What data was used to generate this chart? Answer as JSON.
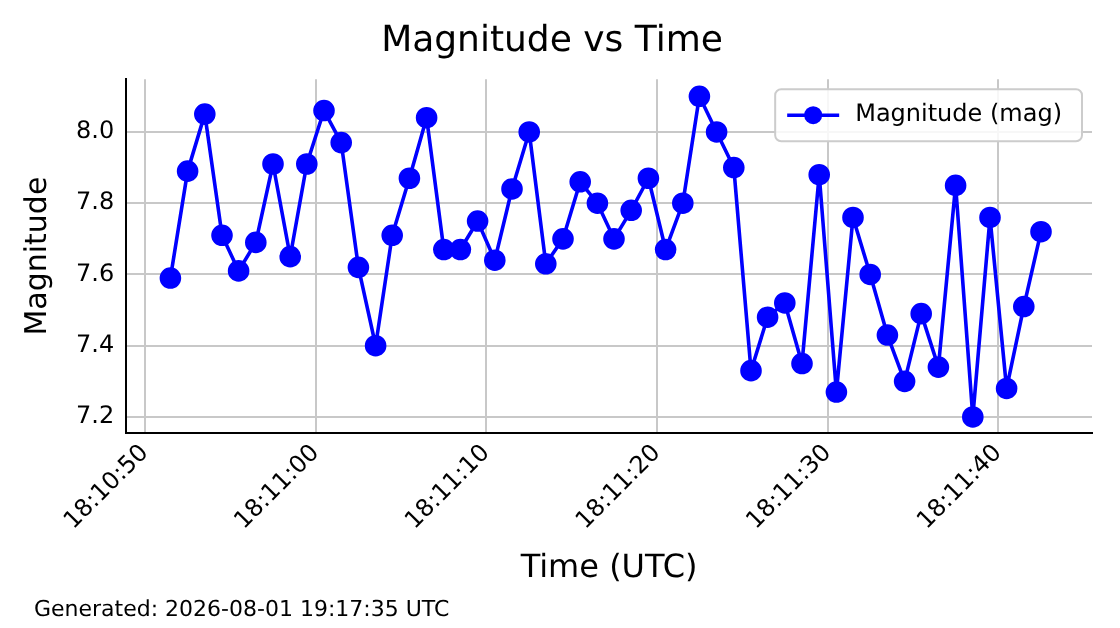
{
  "chart_data": {
    "type": "line",
    "title": "Magnitude vs Time",
    "xlabel": "Time (UTC)",
    "ylabel": "Magnitude",
    "annotations": [
      "Generated: 2026-08-01 19:17:35 UTC"
    ],
    "x": [
      18.18097,
      18.18125,
      18.18153,
      18.18181,
      18.18208,
      18.18236,
      18.18264,
      18.18292,
      18.18319,
      18.18347,
      18.18375,
      18.18403,
      18.18431,
      18.18458,
      18.18486,
      18.18514,
      18.18542,
      18.18569,
      18.18597,
      18.18625,
      18.18653,
      18.18681,
      18.18708,
      18.18736,
      18.18764,
      18.18792,
      18.18819,
      18.18847,
      18.18875,
      18.18903,
      18.18931,
      18.18958,
      18.18986,
      18.19014,
      18.19042,
      18.19069,
      18.19097,
      18.19125,
      18.19153,
      18.19181,
      18.19208,
      18.19236,
      18.19264,
      18.19292,
      18.19319,
      18.19347,
      18.19375,
      18.19403,
      18.19431,
      18.19458,
      18.19486,
      18.19514
    ],
    "series": [
      {
        "name": "Magnitude (mag)",
        "color": "#0000ff",
        "values": [
          7.59,
          7.89,
          8.05,
          7.71,
          7.61,
          7.69,
          7.91,
          7.65,
          7.91,
          8.06,
          7.97,
          7.62,
          7.4,
          7.71,
          7.87,
          8.04,
          7.67,
          7.67,
          7.75,
          7.64,
          7.84,
          8.0,
          7.63,
          7.7,
          7.86,
          7.8,
          7.7,
          7.78,
          7.87,
          7.67,
          7.8,
          8.1,
          8.0,
          7.9,
          7.33,
          7.48,
          7.52,
          7.35,
          7.88,
          7.27,
          7.76,
          7.6,
          7.43,
          7.3,
          7.49,
          7.34,
          7.85,
          7.2,
          7.76,
          7.28,
          7.51,
          7.72
        ]
      }
    ],
    "xlim": [
      18.18025,
      18.19597
    ],
    "xticks": [
      {
        "value": 18.180556,
        "label": "18:10:50"
      },
      {
        "value": 18.183333,
        "label": "18:11:00"
      },
      {
        "value": 18.186111,
        "label": "18:11:10"
      },
      {
        "value": 18.188889,
        "label": "18:11:20"
      },
      {
        "value": 18.191667,
        "label": "18:11:30"
      },
      {
        "value": 18.194444,
        "label": "18:11:40"
      }
    ],
    "ylim": [
      7.155,
      8.148
    ],
    "yticks": [
      {
        "value": 7.2,
        "label": "7.2"
      },
      {
        "value": 7.4,
        "label": "7.4"
      },
      {
        "value": 7.6,
        "label": "7.6"
      },
      {
        "value": 7.8,
        "label": "7.8"
      },
      {
        "value": 8.0,
        "label": "8.0"
      }
    ],
    "grid": true,
    "legend": "top right",
    "marker": "circle",
    "line_style": "solid"
  }
}
